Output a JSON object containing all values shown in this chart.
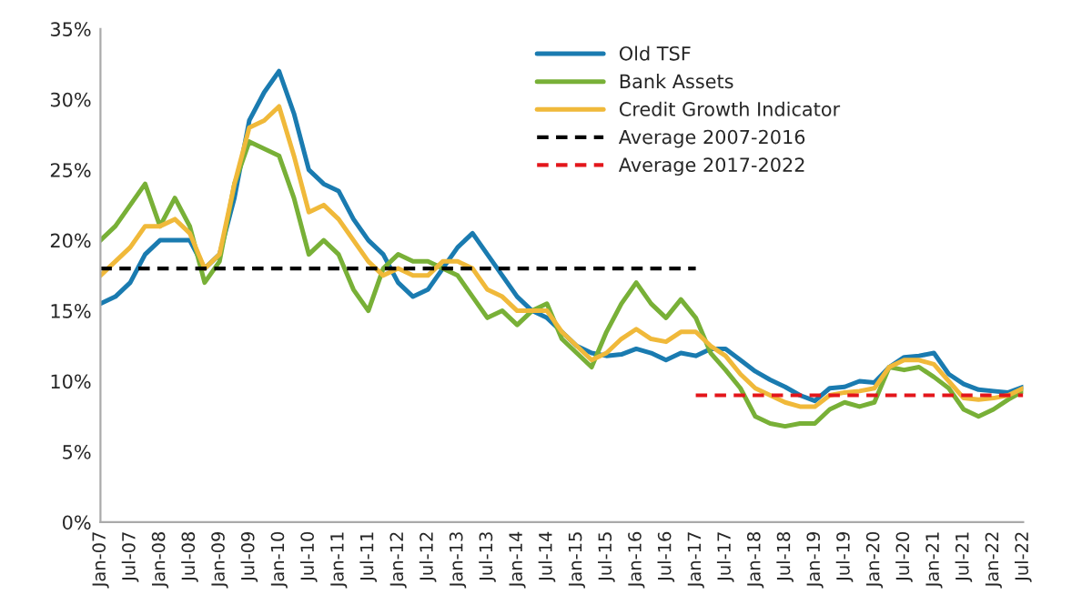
{
  "chart_data": {
    "type": "line",
    "x": [
      "2007-01",
      "2007-04",
      "2007-07",
      "2007-10",
      "2008-01",
      "2008-04",
      "2008-07",
      "2008-10",
      "2009-01",
      "2009-04",
      "2009-07",
      "2009-10",
      "2010-01",
      "2010-04",
      "2010-07",
      "2010-10",
      "2011-01",
      "2011-04",
      "2011-07",
      "2011-10",
      "2012-01",
      "2012-04",
      "2012-07",
      "2012-10",
      "2013-01",
      "2013-04",
      "2013-07",
      "2013-10",
      "2014-01",
      "2014-04",
      "2014-07",
      "2014-10",
      "2015-01",
      "2015-04",
      "2015-07",
      "2015-10",
      "2016-01",
      "2016-04",
      "2016-07",
      "2016-10",
      "2017-01",
      "2017-04",
      "2017-07",
      "2017-10",
      "2018-01",
      "2018-04",
      "2018-07",
      "2018-10",
      "2019-01",
      "2019-04",
      "2019-07",
      "2019-10",
      "2020-01",
      "2020-04",
      "2020-07",
      "2020-10",
      "2021-01",
      "2021-04",
      "2021-07",
      "2021-10",
      "2022-01",
      "2022-04",
      "2022-07"
    ],
    "series": [
      {
        "name": "Old TSF",
        "color": "#1a7bb0",
        "values": [
          15.5,
          16,
          17,
          19,
          20,
          20,
          20,
          18,
          19,
          23,
          28.5,
          30.5,
          32,
          29,
          25,
          24,
          23.5,
          21.5,
          20,
          19,
          17,
          16,
          16.5,
          18,
          19.5,
          20.5,
          19,
          17.5,
          16,
          15,
          14.5,
          13.5,
          12.5,
          12,
          11.8,
          11.9,
          12.3,
          12,
          11.5,
          12,
          11.8,
          12.3,
          12.3,
          11.5,
          10.7,
          10.1,
          9.6,
          9,
          8.6,
          9.5,
          9.6,
          10,
          9.9,
          11,
          11.7,
          11.8,
          12,
          10.5,
          9.8,
          9.4,
          9.3,
          9.2,
          9.6
        ]
      },
      {
        "name": "Bank Assets",
        "color": "#78b037",
        "values": [
          20,
          21,
          22.5,
          24,
          21,
          23,
          21,
          17,
          18.5,
          24,
          27,
          26.5,
          26,
          23,
          19,
          20,
          19,
          16.5,
          15,
          18,
          19,
          18.5,
          18.5,
          18,
          17.5,
          16,
          14.5,
          15,
          14,
          15,
          15.5,
          13,
          12,
          11,
          13.5,
          15.5,
          17,
          15.5,
          14.5,
          15.8,
          14.5,
          12,
          10.8,
          9.5,
          7.5,
          7,
          6.8,
          7,
          7,
          8,
          8.5,
          8.2,
          8.5,
          11,
          10.8,
          11,
          10.3,
          9.5,
          8,
          7.5,
          8,
          8.7,
          9.3
        ]
      },
      {
        "name": "Credit Growth Indicator",
        "color": "#f0b93a",
        "values": [
          17.5,
          18.5,
          19.5,
          21,
          21,
          21.5,
          20.5,
          18,
          19,
          24,
          28,
          28.5,
          29.5,
          26,
          22,
          22.5,
          21.5,
          20,
          18.5,
          17.5,
          18,
          17.5,
          17.5,
          18.5,
          18.5,
          18,
          16.5,
          16,
          15,
          15,
          15,
          13.5,
          12.5,
          11.5,
          12,
          13,
          13.7,
          13,
          12.8,
          13.5,
          13.5,
          12.5,
          11.8,
          10.5,
          9.5,
          9,
          8.5,
          8.2,
          8.2,
          9,
          9.2,
          9.3,
          9.5,
          11,
          11.5,
          11.5,
          11.2,
          10,
          8.8,
          8.7,
          8.8,
          9,
          9.5
        ]
      },
      {
        "name": "Average 2007-2016",
        "color": "#000000",
        "line_style": "dashed",
        "x": [
          "2007-01",
          "2017-01"
        ],
        "values": [
          18,
          18
        ]
      },
      {
        "name": "Average 2017-2022",
        "color": "#e3161b",
        "line_style": "dashed",
        "x": [
          "2017-01",
          "2022-07"
        ],
        "values": [
          9,
          9
        ]
      }
    ],
    "xlim": [
      "2007-01",
      "2022-07"
    ],
    "xticks": [
      {
        "value": "2007-01",
        "label": "Jan-07"
      },
      {
        "value": "2007-07",
        "label": "Jul-07"
      },
      {
        "value": "2008-01",
        "label": "Jan-08"
      },
      {
        "value": "2008-07",
        "label": "Jul-08"
      },
      {
        "value": "2009-01",
        "label": "Jan-09"
      },
      {
        "value": "2009-07",
        "label": "Jul-09"
      },
      {
        "value": "2010-01",
        "label": "Jan-10"
      },
      {
        "value": "2010-07",
        "label": "Jul-10"
      },
      {
        "value": "2011-01",
        "label": "Jan-11"
      },
      {
        "value": "2011-07",
        "label": "Jul-11"
      },
      {
        "value": "2012-01",
        "label": "Jan-12"
      },
      {
        "value": "2012-07",
        "label": "Jul-12"
      },
      {
        "value": "2013-01",
        "label": "Jan-13"
      },
      {
        "value": "2013-07",
        "label": "Jul-13"
      },
      {
        "value": "2014-01",
        "label": "Jan-14"
      },
      {
        "value": "2014-07",
        "label": "Jul-14"
      },
      {
        "value": "2015-01",
        "label": "Jan-15"
      },
      {
        "value": "2015-07",
        "label": "Jul-15"
      },
      {
        "value": "2016-01",
        "label": "Jan-16"
      },
      {
        "value": "2016-07",
        "label": "Jul-16"
      },
      {
        "value": "2017-01",
        "label": "Jan-17"
      },
      {
        "value": "2017-07",
        "label": "Jul-17"
      },
      {
        "value": "2018-01",
        "label": "Jan-18"
      },
      {
        "value": "2018-07",
        "label": "Jul-18"
      },
      {
        "value": "2019-01",
        "label": "Jan-19"
      },
      {
        "value": "2019-07",
        "label": "Jul-19"
      },
      {
        "value": "2020-01",
        "label": "Jan-20"
      },
      {
        "value": "2020-07",
        "label": "Jul-20"
      },
      {
        "value": "2021-01",
        "label": "Jan-21"
      },
      {
        "value": "2021-07",
        "label": "Jul-21"
      },
      {
        "value": "2022-01",
        "label": "Jan-22"
      },
      {
        "value": "2022-07",
        "label": "Jul-22"
      }
    ],
    "ylim": [
      0,
      35
    ],
    "yticks": [
      {
        "value": 0,
        "label": "0%"
      },
      {
        "value": 5,
        "label": "5%"
      },
      {
        "value": 10,
        "label": "10%"
      },
      {
        "value": 15,
        "label": "15%"
      },
      {
        "value": 20,
        "label": "20%"
      },
      {
        "value": 25,
        "label": "25%"
      },
      {
        "value": 30,
        "label": "30%"
      },
      {
        "value": 35,
        "label": "35%"
      }
    ],
    "grid": false,
    "legend": "top right"
  }
}
